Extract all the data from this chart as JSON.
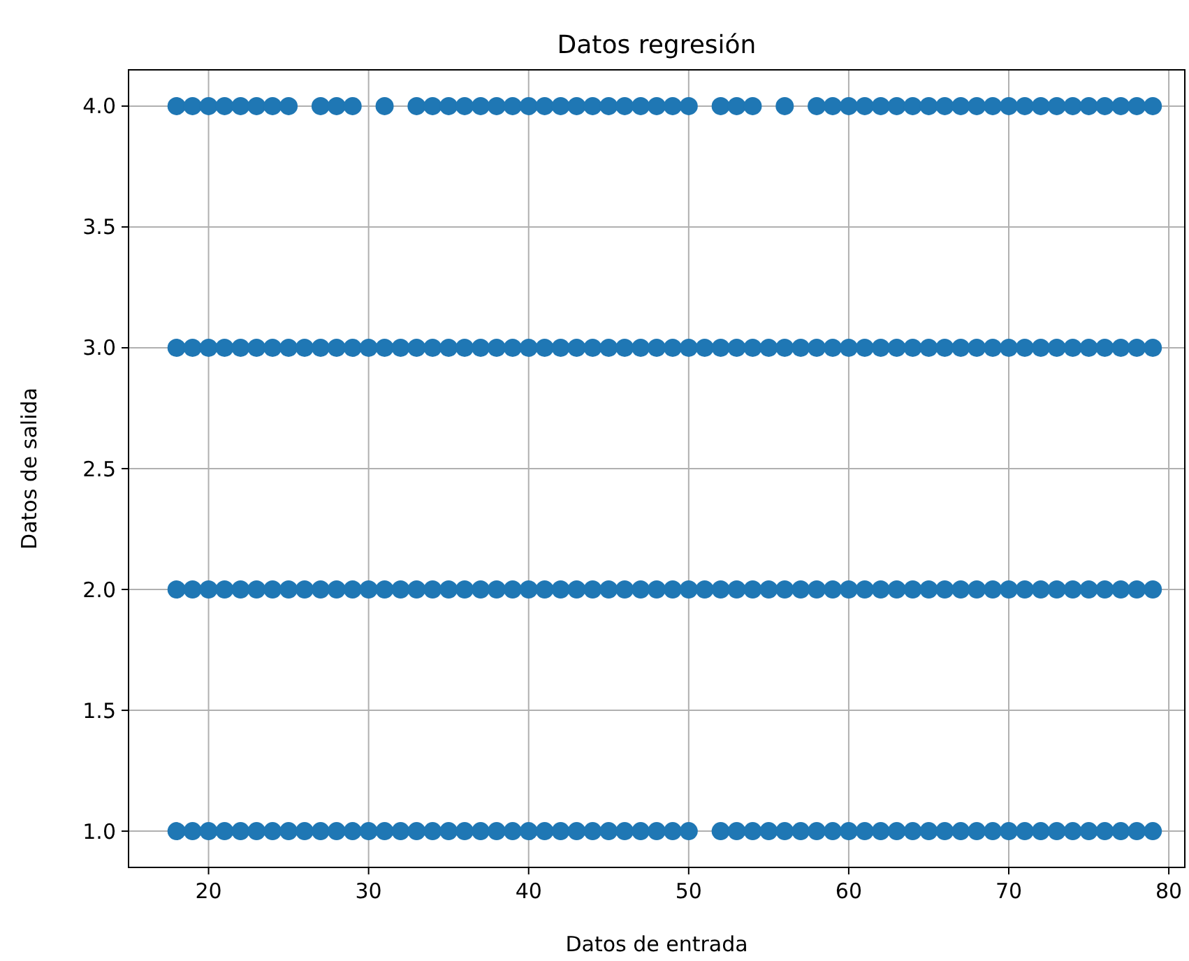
{
  "chart_data": {
    "type": "scatter",
    "title": "Datos regresión",
    "xlabel": "Datos de entrada",
    "ylabel": "Datos de salida",
    "xlim": [
      15,
      81
    ],
    "ylim": [
      0.85,
      4.15
    ],
    "xticks": [
      20,
      30,
      40,
      50,
      60,
      70,
      80
    ],
    "yticks": [
      {
        "value": 1,
        "label": "1.0"
      },
      {
        "value": 1.5,
        "label": "1.5"
      },
      {
        "value": 2,
        "label": "2.0"
      },
      {
        "value": 2.5,
        "label": "2.5"
      },
      {
        "value": 3,
        "label": "3.0"
      },
      {
        "value": 3.5,
        "label": "3.5"
      },
      {
        "value": 4,
        "label": "4.0"
      }
    ],
    "grid": true,
    "marker": "circle",
    "series": [
      {
        "color": "#1f77b4",
        "x": [
          18,
          19,
          20,
          21,
          22,
          23,
          24,
          25,
          27,
          28,
          29,
          31,
          33,
          34,
          35,
          36,
          37,
          38,
          39,
          40,
          41,
          42,
          43,
          44,
          45,
          46,
          47,
          48,
          49,
          50,
          52,
          53,
          54,
          56,
          58,
          59,
          60,
          61,
          62,
          63,
          64,
          65,
          66,
          67,
          68,
          69,
          70,
          71,
          72,
          73,
          74,
          75,
          76,
          77,
          78,
          79
        ],
        "values": [
          4,
          4,
          4,
          4,
          4,
          4,
          4,
          4,
          4,
          4,
          4,
          4,
          4,
          4,
          4,
          4,
          4,
          4,
          4,
          4,
          4,
          4,
          4,
          4,
          4,
          4,
          4,
          4,
          4,
          4,
          4,
          4,
          4,
          4,
          4,
          4,
          4,
          4,
          4,
          4,
          4,
          4,
          4,
          4,
          4,
          4,
          4,
          4,
          4,
          4,
          4,
          4,
          4,
          4,
          4,
          4
        ]
      },
      {
        "color": "#1f77b4",
        "x": [
          18,
          19,
          20,
          21,
          22,
          23,
          24,
          25,
          26,
          27,
          28,
          29,
          30,
          31,
          32,
          33,
          34,
          35,
          36,
          37,
          38,
          39,
          40,
          41,
          42,
          43,
          44,
          45,
          46,
          47,
          48,
          49,
          50,
          51,
          52,
          53,
          54,
          55,
          56,
          57,
          58,
          59,
          60,
          61,
          62,
          63,
          64,
          65,
          66,
          67,
          68,
          69,
          70,
          71,
          72,
          73,
          74,
          75,
          76,
          77,
          78,
          79
        ],
        "values": [
          3,
          3,
          3,
          3,
          3,
          3,
          3,
          3,
          3,
          3,
          3,
          3,
          3,
          3,
          3,
          3,
          3,
          3,
          3,
          3,
          3,
          3,
          3,
          3,
          3,
          3,
          3,
          3,
          3,
          3,
          3,
          3,
          3,
          3,
          3,
          3,
          3,
          3,
          3,
          3,
          3,
          3,
          3,
          3,
          3,
          3,
          3,
          3,
          3,
          3,
          3,
          3,
          3,
          3,
          3,
          3,
          3,
          3,
          3,
          3,
          3,
          3
        ]
      },
      {
        "color": "#1f77b4",
        "x": [
          18,
          19,
          20,
          21,
          22,
          23,
          24,
          25,
          26,
          27,
          28,
          29,
          30,
          31,
          32,
          33,
          34,
          35,
          36,
          37,
          38,
          39,
          40,
          41,
          42,
          43,
          44,
          45,
          46,
          47,
          48,
          49,
          50,
          51,
          52,
          53,
          54,
          55,
          56,
          57,
          58,
          59,
          60,
          61,
          62,
          63,
          64,
          65,
          66,
          67,
          68,
          69,
          70,
          71,
          72,
          73,
          74,
          75,
          76,
          77,
          78,
          79
        ],
        "values": [
          2,
          2,
          2,
          2,
          2,
          2,
          2,
          2,
          2,
          2,
          2,
          2,
          2,
          2,
          2,
          2,
          2,
          2,
          2,
          2,
          2,
          2,
          2,
          2,
          2,
          2,
          2,
          2,
          2,
          2,
          2,
          2,
          2,
          2,
          2,
          2,
          2,
          2,
          2,
          2,
          2,
          2,
          2,
          2,
          2,
          2,
          2,
          2,
          2,
          2,
          2,
          2,
          2,
          2,
          2,
          2,
          2,
          2,
          2,
          2,
          2,
          2
        ]
      },
      {
        "color": "#1f77b4",
        "x": [
          18,
          19,
          20,
          21,
          22,
          23,
          24,
          25,
          26,
          27,
          28,
          29,
          30,
          31,
          32,
          33,
          34,
          35,
          36,
          37,
          38,
          39,
          40,
          41,
          42,
          43,
          44,
          45,
          46,
          47,
          48,
          49,
          50,
          52,
          53,
          54,
          55,
          56,
          57,
          58,
          59,
          60,
          61,
          62,
          63,
          64,
          65,
          66,
          67,
          68,
          69,
          70,
          71,
          72,
          73,
          74,
          75,
          76,
          77,
          78,
          79
        ],
        "values": [
          1,
          1,
          1,
          1,
          1,
          1,
          1,
          1,
          1,
          1,
          1,
          1,
          1,
          1,
          1,
          1,
          1,
          1,
          1,
          1,
          1,
          1,
          1,
          1,
          1,
          1,
          1,
          1,
          1,
          1,
          1,
          1,
          1,
          1,
          1,
          1,
          1,
          1,
          1,
          1,
          1,
          1,
          1,
          1,
          1,
          1,
          1,
          1,
          1,
          1,
          1,
          1,
          1,
          1,
          1,
          1,
          1,
          1,
          1,
          1,
          1
        ]
      }
    ]
  }
}
